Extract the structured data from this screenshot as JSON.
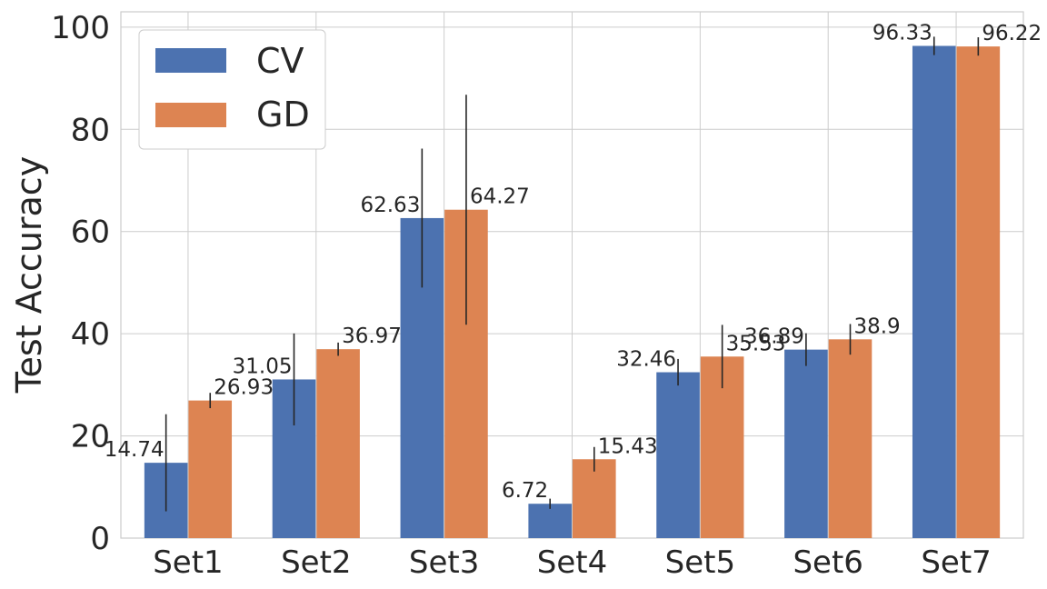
{
  "chart_data": {
    "type": "bar",
    "title": "",
    "xlabel": "",
    "ylabel": "Test Accuracy",
    "ylim": [
      0,
      103
    ],
    "yticks": [
      0,
      20,
      40,
      60,
      80,
      100
    ],
    "grid": true,
    "legend_position": "top-left",
    "categories": [
      "Set1",
      "Set2",
      "Set3",
      "Set4",
      "Set5",
      "Set6",
      "Set7"
    ],
    "series": [
      {
        "name": "CV",
        "color": "#4c72b0",
        "values": [
          14.74,
          31.05,
          62.63,
          6.72,
          32.46,
          36.89,
          96.33
        ],
        "labels": [
          "14.74",
          "31.05",
          "62.63",
          "6.72",
          "32.46",
          "36.89",
          "96.33"
        ],
        "error": [
          9.5,
          9.0,
          13.6,
          1.0,
          2.6,
          3.2,
          1.8
        ]
      },
      {
        "name": "GD",
        "color": "#dd8452",
        "values": [
          26.93,
          36.97,
          64.27,
          15.43,
          35.53,
          38.9,
          96.22
        ],
        "labels": [
          "26.93",
          "36.97",
          "64.27",
          "15.43",
          "35.53",
          "38.9",
          "96.22"
        ],
        "error": [
          1.5,
          1.3,
          22.5,
          2.4,
          6.2,
          3.0,
          1.8
        ]
      }
    ]
  }
}
